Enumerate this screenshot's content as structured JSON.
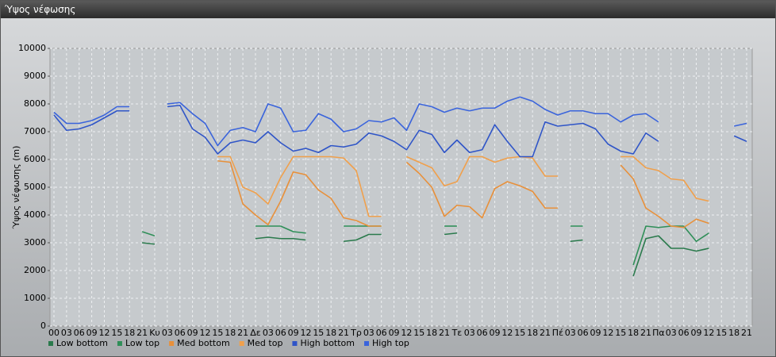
{
  "window_title": "Ύψος νέφωσης",
  "chart_data": {
    "type": "line",
    "y_label": "Ύψος νέφωσης (m)",
    "categories": [
      "00",
      "03",
      "06",
      "09",
      "12",
      "15",
      "18",
      "21",
      "Κυ",
      "03",
      "06",
      "09",
      "12",
      "15",
      "18",
      "21",
      "Δε",
      "03",
      "06",
      "09",
      "12",
      "15",
      "18",
      "21",
      "Τρ",
      "03",
      "06",
      "09",
      "12",
      "15",
      "18",
      "21",
      "Τε",
      "03",
      "06",
      "09",
      "12",
      "15",
      "18",
      "21",
      "Πέ",
      "03",
      "06",
      "09",
      "12",
      "15",
      "18",
      "21",
      "Πα",
      "03",
      "06",
      "09",
      "12",
      "15",
      "18",
      "21"
    ],
    "ylim": [
      0,
      10000
    ],
    "yticks": [
      0,
      1000,
      2000,
      3000,
      4000,
      5000,
      6000,
      7000,
      8000,
      9000,
      10000
    ],
    "grid": true,
    "series": [
      {
        "name": "Low bottom",
        "color": "#2a7a4c",
        "values": [
          null,
          null,
          null,
          null,
          null,
          null,
          null,
          3000,
          2950,
          null,
          null,
          null,
          null,
          null,
          null,
          null,
          3150,
          3200,
          3150,
          3150,
          3100,
          null,
          null,
          3050,
          3100,
          3300,
          3300,
          null,
          null,
          null,
          null,
          3300,
          3350,
          null,
          null,
          null,
          null,
          null,
          null,
          null,
          null,
          3050,
          3100,
          null,
          null,
          null,
          1800,
          3150,
          3250,
          2800,
          2800,
          2700,
          2800,
          null,
          null,
          null
        ]
      },
      {
        "name": "Low top",
        "color": "#2f8f58",
        "values": [
          null,
          null,
          null,
          null,
          null,
          null,
          null,
          3400,
          3250,
          null,
          null,
          null,
          null,
          null,
          null,
          null,
          3600,
          3600,
          3600,
          3400,
          3350,
          null,
          null,
          3600,
          3600,
          3600,
          3600,
          null,
          null,
          null,
          null,
          3600,
          3600,
          null,
          null,
          null,
          null,
          null,
          null,
          null,
          null,
          3600,
          3600,
          null,
          null,
          null,
          2200,
          3600,
          3550,
          3600,
          3600,
          3050,
          3350,
          null,
          null,
          null
        ]
      },
      {
        "name": "Med bottom",
        "color": "#e8903a",
        "values": [
          null,
          null,
          null,
          null,
          null,
          null,
          null,
          null,
          null,
          null,
          null,
          null,
          null,
          5950,
          5900,
          4400,
          4000,
          3650,
          4500,
          5550,
          5450,
          4900,
          4600,
          3900,
          3800,
          3600,
          3600,
          null,
          5900,
          5500,
          5000,
          3950,
          4350,
          4300,
          3900,
          4950,
          5200,
          5050,
          4850,
          4250,
          4250,
          null,
          null,
          null,
          null,
          5800,
          5300,
          4250,
          3950,
          3600,
          3550,
          3850,
          3700,
          null,
          null,
          null
        ]
      },
      {
        "name": "Med top",
        "color": "#f0a04c",
        "values": [
          null,
          null,
          null,
          null,
          null,
          null,
          null,
          null,
          null,
          null,
          null,
          null,
          null,
          6100,
          6100,
          5000,
          4800,
          4400,
          5350,
          6100,
          6100,
          6100,
          6100,
          6050,
          5600,
          3950,
          3950,
          null,
          6100,
          5900,
          5700,
          5050,
          5200,
          6100,
          6100,
          5900,
          6050,
          6100,
          6050,
          5400,
          5400,
          null,
          null,
          null,
          null,
          6100,
          6100,
          5700,
          5600,
          5300,
          5250,
          4600,
          4500,
          null,
          null,
          null
        ]
      },
      {
        "name": "High bottom",
        "color": "#2f55c8",
        "values": [
          7600,
          7050,
          7100,
          7250,
          7500,
          7750,
          7750,
          null,
          null,
          7900,
          7950,
          7100,
          6800,
          6200,
          6600,
          6700,
          6600,
          7000,
          6600,
          6300,
          6400,
          6250,
          6500,
          6450,
          6550,
          6950,
          6850,
          6650,
          6350,
          7050,
          6900,
          6250,
          6700,
          6250,
          6350,
          7250,
          6650,
          6100,
          6100,
          7350,
          7200,
          7250,
          7300,
          7100,
          6550,
          6300,
          6200,
          6950,
          6650,
          null,
          null,
          null,
          null,
          null,
          6850,
          6650
        ]
      },
      {
        "name": "High top",
        "color": "#3a64dc",
        "values": [
          7700,
          7300,
          7300,
          7400,
          7600,
          7900,
          7900,
          null,
          null,
          8000,
          8050,
          7650,
          7300,
          6500,
          7050,
          7150,
          7000,
          8000,
          7850,
          7000,
          7050,
          7650,
          7450,
          7000,
          7100,
          7400,
          7350,
          7500,
          7050,
          8000,
          7900,
          7700,
          7850,
          7750,
          7850,
          7850,
          8100,
          8250,
          8100,
          7800,
          7600,
          7750,
          7750,
          7650,
          7650,
          7350,
          7600,
          7650,
          7350,
          null,
          null,
          null,
          null,
          null,
          7200,
          7300
        ]
      }
    ]
  }
}
